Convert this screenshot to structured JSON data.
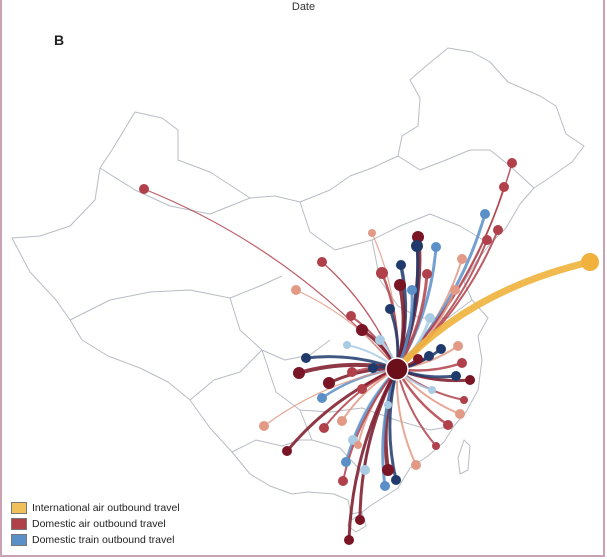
{
  "header": {
    "axis_caption": "Date",
    "panel_label": "B"
  },
  "legend": [
    {
      "label": "International air outbound travel",
      "color": "#F0C05A"
    },
    {
      "label": "Domestic air outbound travel",
      "color": "#B0404A"
    },
    {
      "label": "Domestic train outbound travel",
      "color": "#5B8FC8"
    }
  ],
  "colors": {
    "hub": "#6B0F1A",
    "intl": "#F0B23C",
    "air_dark": "#7A1526",
    "air_mid": "#B0404A",
    "air_light": "#E29A86",
    "train_dark": "#1F3A6B",
    "train_mid": "#5B8FC8",
    "train_light": "#A9CBE3",
    "border": "#b8bcc4"
  }
}
